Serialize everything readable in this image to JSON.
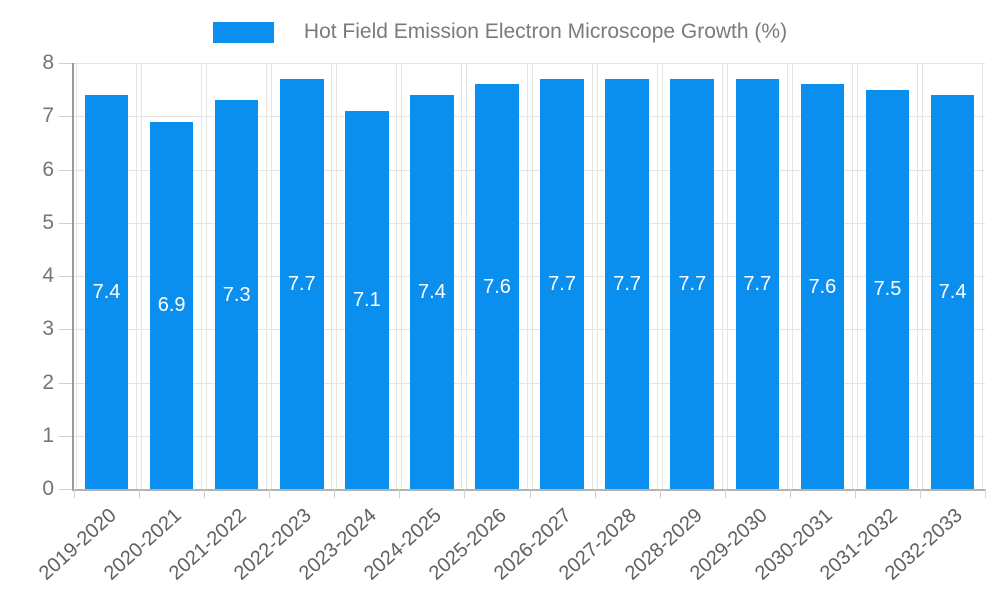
{
  "legend": {
    "label": "Hot Field Emission Electron Microscope Growth (%)"
  },
  "chart_data": {
    "type": "bar",
    "title": "Hot Field Emission Electron Microscope Growth (%)",
    "xlabel": "",
    "ylabel": "",
    "categories": [
      "2019-2020",
      "2020-2021",
      "2021-2022",
      "2022-2023",
      "2023-2024",
      "2024-2025",
      "2025-2026",
      "2026-2027",
      "2027-2028",
      "2028-2029",
      "2029-2030",
      "2030-2031",
      "2031-2032",
      "2032-2033"
    ],
    "values": [
      7.4,
      6.9,
      7.3,
      7.7,
      7.1,
      7.4,
      7.6,
      7.7,
      7.7,
      7.7,
      7.7,
      7.6,
      7.5,
      7.4
    ],
    "bar_value_labels": [
      "7.4",
      "6.9",
      "7.3",
      "7.7",
      "7.1",
      "7.4",
      "7.6",
      "7.7",
      "7.7",
      "7.7",
      "7.7",
      "7.6",
      "7.5",
      "7.4"
    ],
    "ylim": [
      0,
      8
    ],
    "yticks": [
      0,
      1,
      2,
      3,
      4,
      5,
      6,
      7,
      8
    ],
    "grid": "horizontal-and-vertical",
    "legend_position": "top",
    "value_label_position": "center-of-bar"
  },
  "colors": {
    "bar": "#0A8FEF",
    "bar_label": "#ffffff",
    "legend_text": "#7b7b7b",
    "axis_text": "#757575",
    "xaxis_text": "#616161",
    "grid": "#e4e4e4",
    "tick": "#d0d0d0",
    "axis_line": "#9a9a9a",
    "baseline": "#b3b3b3"
  }
}
